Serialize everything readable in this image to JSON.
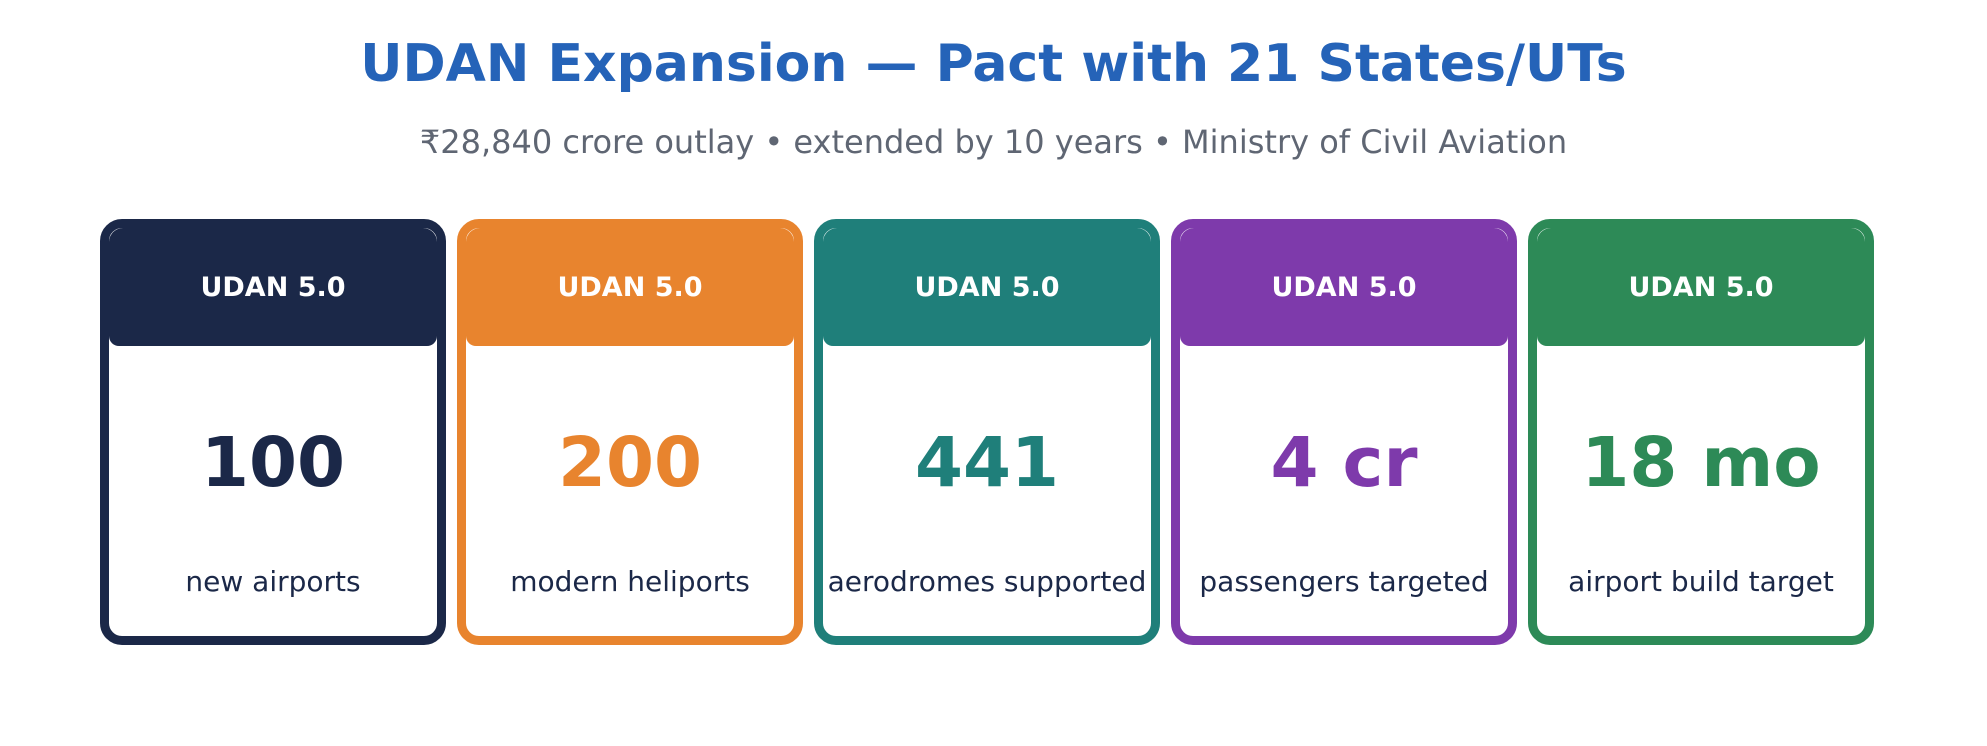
{
  "header": {
    "title": "UDAN Expansion — Pact with 21 States/UTs",
    "subtitle": "₹28,840 crore outlay  •  extended by 10 years  •  Ministry of Civil Aviation",
    "title_color": "#2563b8",
    "subtitle_color": "#5f6673"
  },
  "cards": [
    {
      "header": "UDAN 5.0",
      "value": "100",
      "label": "new airports",
      "color": "#1b2848"
    },
    {
      "header": "UDAN 5.0",
      "value": "200",
      "label": "modern heliports",
      "color": "#e8842e"
    },
    {
      "header": "UDAN 5.0",
      "value": "441",
      "label": "aerodromes supported",
      "color": "#1f7f7a"
    },
    {
      "header": "UDAN 5.0",
      "value": "4 cr",
      "label": "passengers targeted",
      "color": "#7e3aab"
    },
    {
      "header": "UDAN 5.0",
      "value": "18 mo",
      "label": "airport build target",
      "color": "#2d8a57"
    }
  ]
}
